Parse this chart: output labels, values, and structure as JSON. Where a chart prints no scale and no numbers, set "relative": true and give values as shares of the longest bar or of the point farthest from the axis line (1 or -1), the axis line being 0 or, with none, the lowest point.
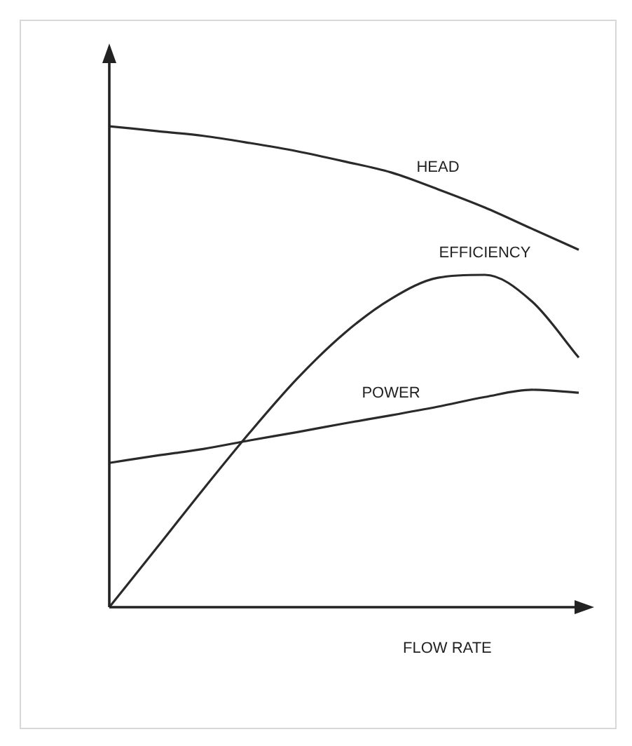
{
  "chart_data": {
    "type": "line",
    "relative": true,
    "xlabel": "FLOW RATE",
    "categories": [
      null,
      null,
      null,
      null,
      null,
      null,
      null,
      null,
      null,
      null,
      null
    ],
    "marker": "none",
    "legend": false,
    "series": [
      {
        "name": "HEAD",
        "color": "#2a2a2a",
        "values": [
          1,
          0.99,
          0.98,
          0.965,
          0.948,
          0.927,
          0.904,
          0.869,
          0.831,
          0.787,
          0.743
        ]
      },
      {
        "name": "EFFICIENCY",
        "color": "#2a2a2a",
        "values": [
          0,
          0.122,
          0.245,
          0.364,
          0.475,
          0.569,
          0.641,
          0.685,
          0.691,
          0.636,
          0.519
        ]
      },
      {
        "name": "POWER",
        "color": "#2a2a2a",
        "values": [
          0.3,
          0.315,
          0.329,
          0.347,
          0.364,
          0.382,
          0.399,
          0.417,
          0.437,
          0.452,
          0.446
        ]
      }
    ]
  }
}
